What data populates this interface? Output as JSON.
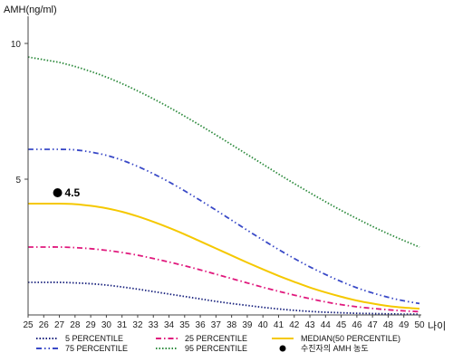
{
  "chart_data": {
    "type": "line",
    "ylabel": "AMH(ng/ml)",
    "xlabel": "나이",
    "x": [
      25,
      26,
      27,
      28,
      29,
      30,
      31,
      32,
      33,
      34,
      35,
      36,
      37,
      38,
      39,
      40,
      41,
      42,
      43,
      44,
      45,
      46,
      47,
      48,
      49,
      50
    ],
    "xlim": [
      25,
      50
    ],
    "ylim": [
      0,
      11
    ],
    "yticks": [
      5,
      10
    ],
    "grid": false,
    "legend_position": "bottom",
    "series": [
      {
        "name": "5 PERCENTILE",
        "color": "#1a237e",
        "style": "dotted",
        "values": [
          1.2,
          1.2,
          1.2,
          1.18,
          1.15,
          1.1,
          1.03,
          0.95,
          0.86,
          0.77,
          0.68,
          0.59,
          0.5,
          0.42,
          0.35,
          0.28,
          0.22,
          0.17,
          0.13,
          0.1,
          0.08,
          0.06,
          0.05,
          0.04,
          0.03,
          0.03
        ]
      },
      {
        "name": "25 PERCENTILE",
        "color": "#e0197d",
        "style": "dashdot",
        "values": [
          2.5,
          2.5,
          2.5,
          2.48,
          2.44,
          2.38,
          2.3,
          2.2,
          2.08,
          1.95,
          1.81,
          1.66,
          1.5,
          1.34,
          1.18,
          1.02,
          0.87,
          0.73,
          0.6,
          0.48,
          0.38,
          0.3,
          0.24,
          0.19,
          0.15,
          0.12
        ]
      },
      {
        "name": "MEDIAN(50 PERCENTILE)",
        "color": "#f5c800",
        "style": "solid",
        "values": [
          4.1,
          4.1,
          4.1,
          4.08,
          4.02,
          3.93,
          3.8,
          3.63,
          3.43,
          3.21,
          2.97,
          2.71,
          2.45,
          2.19,
          1.93,
          1.68,
          1.44,
          1.22,
          1.01,
          0.83,
          0.67,
          0.53,
          0.42,
          0.33,
          0.27,
          0.23
        ]
      },
      {
        "name": "75 PERCENTILE",
        "color": "#3949c7",
        "style": "dashdotdot",
        "values": [
          6.1,
          6.1,
          6.1,
          6.08,
          6.0,
          5.88,
          5.7,
          5.47,
          5.2,
          4.9,
          4.57,
          4.22,
          3.86,
          3.49,
          3.12,
          2.76,
          2.41,
          2.08,
          1.77,
          1.49,
          1.23,
          1.0,
          0.81,
          0.65,
          0.52,
          0.42
        ]
      },
      {
        "name": "95 PERCENTILE",
        "color": "#2e8b3e",
        "style": "dotted",
        "values": [
          9.5,
          9.4,
          9.3,
          9.15,
          8.97,
          8.76,
          8.52,
          8.25,
          7.96,
          7.65,
          7.32,
          6.98,
          6.63,
          6.27,
          5.91,
          5.55,
          5.19,
          4.84,
          4.5,
          4.17,
          3.85,
          3.55,
          3.26,
          2.99,
          2.74,
          2.5
        ]
      }
    ],
    "marker": {
      "name": "수진자의 AMH 농도",
      "x": 27,
      "y": 4.5,
      "label": "4.5",
      "color": "#000000"
    }
  }
}
